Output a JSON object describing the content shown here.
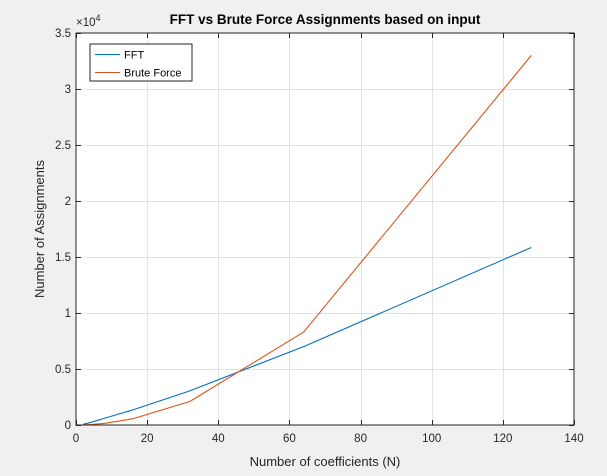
{
  "chart_data": {
    "type": "line",
    "title": "FFT vs Brute Force Assignments based on input",
    "xlabel": "Number of coefficients (N)",
    "ylabel": "Number of Assignments",
    "xlim": [
      0,
      140
    ],
    "ylim": [
      0,
      35000
    ],
    "y_exponent_base": "×10",
    "y_exponent_power": "4",
    "x_ticks": [
      0,
      20,
      40,
      60,
      80,
      100,
      120,
      140
    ],
    "x_tick_labels": [
      "0",
      "20",
      "40",
      "60",
      "80",
      "100",
      "120",
      "140"
    ],
    "y_ticks": [
      0,
      5000,
      10000,
      15000,
      20000,
      25000,
      30000,
      35000
    ],
    "y_tick_labels": [
      "0",
      "0.5",
      "1",
      "1.5",
      "2",
      "2.5",
      "3",
      "3.5"
    ],
    "grid": true,
    "legend_position": "top-left",
    "series": [
      {
        "name": "FFT",
        "color": "#0072BD",
        "x": [
          2,
          4,
          8,
          16,
          32,
          64,
          128
        ],
        "y": [
          60,
          220,
          600,
          1350,
          3050,
          7000,
          15850
        ]
      },
      {
        "name": "Brute Force",
        "color": "#D95319",
        "x": [
          2,
          4,
          8,
          16,
          32,
          64,
          128
        ],
        "y": [
          10,
          40,
          140,
          560,
          2100,
          8300,
          33000
        ]
      }
    ]
  },
  "colors": {
    "figure_background": "#f0f0f0",
    "axes_background": "#ffffff",
    "grid": "#e3e3e3",
    "axis": "#262626"
  }
}
